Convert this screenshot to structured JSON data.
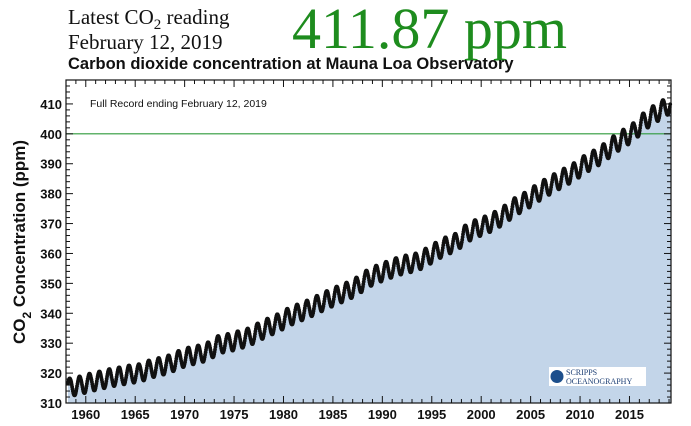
{
  "header": {
    "latest_label_prefix": "Latest CO",
    "latest_label_sub": "2",
    "latest_label_suffix": " reading",
    "date": "February 12, 2019",
    "reading": "411.87 ppm"
  },
  "logo_text": "SCRIPPS INSTITUTION OF OCEANOGRAPHY",
  "colors": {
    "reading": "#1e8c1e",
    "fill": "#c3d5e9",
    "reference_line": "#2e9a3a",
    "dots": "#111111"
  },
  "chart_data": {
    "type": "scatter",
    "title": "Carbon dioxide concentration at Mauna Loa Observatory",
    "annotation": "Full Record ending February 12, 2019",
    "ylabel_prefix": "CO",
    "ylabel_sub": "2",
    "ylabel_suffix": " Concentration (ppm)",
    "xlim": [
      1958,
      2019.2
    ],
    "ylim": [
      310,
      418
    ],
    "xticks": [
      1960,
      1965,
      1970,
      1975,
      1980,
      1985,
      1990,
      1995,
      2000,
      2005,
      2010,
      2015
    ],
    "yticks": [
      310,
      320,
      330,
      340,
      350,
      360,
      370,
      380,
      390,
      400,
      410
    ],
    "reference_line": 400,
    "seasonal_amplitude_ppm": 3,
    "annual_mean": {
      "years": [
        1958,
        1959,
        1960,
        1961,
        1962,
        1963,
        1964,
        1965,
        1966,
        1967,
        1968,
        1969,
        1970,
        1971,
        1972,
        1973,
        1974,
        1975,
        1976,
        1977,
        1978,
        1979,
        1980,
        1981,
        1982,
        1983,
        1984,
        1985,
        1986,
        1987,
        1988,
        1989,
        1990,
        1991,
        1992,
        1993,
        1994,
        1995,
        1996,
        1997,
        1998,
        1999,
        2000,
        2001,
        2002,
        2003,
        2004,
        2005,
        2006,
        2007,
        2008,
        2009,
        2010,
        2011,
        2012,
        2013,
        2014,
        2015,
        2016,
        2017,
        2018,
        2019
      ],
      "values": [
        315.3,
        315.97,
        316.91,
        317.64,
        318.45,
        318.99,
        319.62,
        320.04,
        321.38,
        322.16,
        323.04,
        324.62,
        325.68,
        326.32,
        327.45,
        329.68,
        330.18,
        331.11,
        332.04,
        333.83,
        335.4,
        336.84,
        338.75,
        340.11,
        341.45,
        343.05,
        344.65,
        346.12,
        347.42,
        349.19,
        351.57,
        353.12,
        354.39,
        355.61,
        356.45,
        357.1,
        358.83,
        360.82,
        362.61,
        363.73,
        366.7,
        368.38,
        369.55,
        371.14,
        373.28,
        375.8,
        377.52,
        379.8,
        381.9,
        383.79,
        385.6,
        387.43,
        389.9,
        391.65,
        393.85,
        396.52,
        398.65,
        400.83,
        404.24,
        406.55,
        408.52,
        410.8
      ]
    }
  }
}
